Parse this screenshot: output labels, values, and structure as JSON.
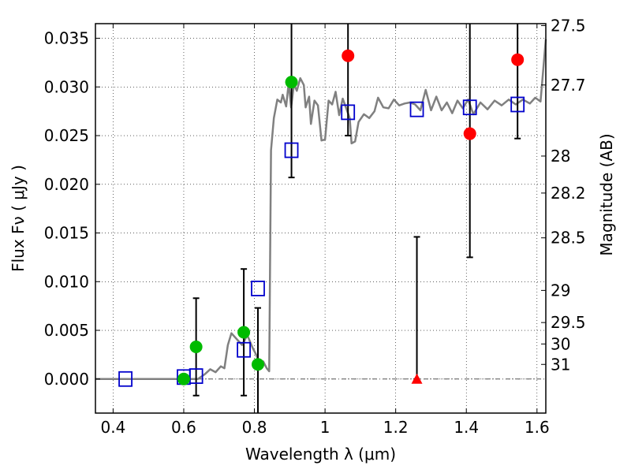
{
  "chart_data": {
    "type": "scatter",
    "xlabel": "Wavelength  λ (μm)",
    "ylabel": "Flux  Fν  ( μJy )",
    "y2label": "Magnitude (AB)",
    "xlim": [
      0.35,
      1.625
    ],
    "ylim": [
      -0.0035,
      0.0365
    ],
    "grid": true,
    "x_ticks": [
      {
        "v": 0.4,
        "label": "0.4"
      },
      {
        "v": 0.6,
        "label": "0.6"
      },
      {
        "v": 0.8,
        "label": "0.8"
      },
      {
        "v": 1.0,
        "label": "1"
      },
      {
        "v": 1.2,
        "label": "1.2"
      },
      {
        "v": 1.4,
        "label": "1.4"
      },
      {
        "v": 1.6,
        "label": "1.6"
      }
    ],
    "y_ticks": [
      {
        "v": 0.0,
        "label": "0.000"
      },
      {
        "v": 0.005,
        "label": "0.005"
      },
      {
        "v": 0.01,
        "label": "0.010"
      },
      {
        "v": 0.015,
        "label": "0.015"
      },
      {
        "v": 0.02,
        "label": "0.020"
      },
      {
        "v": 0.025,
        "label": "0.025"
      },
      {
        "v": 0.03,
        "label": "0.030"
      },
      {
        "v": 0.035,
        "label": "0.035"
      }
    ],
    "mag_ticks": [
      {
        "label": "27.5",
        "flux": 0.0363
      },
      {
        "label": "27.7",
        "flux": 0.0302
      },
      {
        "label": "28",
        "flux": 0.0229
      },
      {
        "label": "28.2",
        "flux": 0.0191
      },
      {
        "label": "28.5",
        "flux": 0.0145
      },
      {
        "label": "29",
        "flux": 0.0091
      },
      {
        "label": "29.5",
        "flux": 0.0058
      },
      {
        "label": "30",
        "flux": 0.0036
      },
      {
        "label": "31",
        "flux": 0.0015
      }
    ],
    "colors": {
      "model": "#808080",
      "model_photometry": "#0000cc",
      "optical": "#00bb00",
      "nir": "#ff0000",
      "errorbar": "#000000",
      "zero_line": "#555555"
    },
    "series": [
      {
        "marker": "line",
        "role": "model",
        "points": [
          [
            0.35,
            0.0
          ],
          [
            0.64,
            0.0
          ],
          [
            0.66,
            0.0005
          ],
          [
            0.675,
            0.001
          ],
          [
            0.69,
            0.0007
          ],
          [
            0.705,
            0.0013
          ],
          [
            0.715,
            0.0011
          ],
          [
            0.725,
            0.0035
          ],
          [
            0.735,
            0.0047
          ],
          [
            0.75,
            0.0041
          ],
          [
            0.765,
            0.0035
          ],
          [
            0.78,
            0.0045
          ],
          [
            0.795,
            0.0032
          ],
          [
            0.805,
            0.0025
          ],
          [
            0.815,
            0.0015
          ],
          [
            0.825,
            0.0018
          ],
          [
            0.835,
            0.0011
          ],
          [
            0.842,
            0.0008
          ],
          [
            0.847,
            0.0235
          ],
          [
            0.855,
            0.0268
          ],
          [
            0.865,
            0.0287
          ],
          [
            0.875,
            0.0284
          ],
          [
            0.88,
            0.0292
          ],
          [
            0.89,
            0.028
          ],
          [
            0.897,
            0.0304
          ],
          [
            0.904,
            0.0279
          ],
          [
            0.912,
            0.0303
          ],
          [
            0.92,
            0.0296
          ],
          [
            0.93,
            0.0309
          ],
          [
            0.94,
            0.0302
          ],
          [
            0.945,
            0.0279
          ],
          [
            0.955,
            0.029
          ],
          [
            0.96,
            0.0262
          ],
          [
            0.97,
            0.0286
          ],
          [
            0.98,
            0.0281
          ],
          [
            0.99,
            0.0245
          ],
          [
            1.0,
            0.0246
          ],
          [
            1.01,
            0.0286
          ],
          [
            1.02,
            0.0282
          ],
          [
            1.03,
            0.0295
          ],
          [
            1.04,
            0.0271
          ],
          [
            1.05,
            0.0288
          ],
          [
            1.06,
            0.0278
          ],
          [
            1.07,
            0.0268
          ],
          [
            1.075,
            0.0242
          ],
          [
            1.085,
            0.0244
          ],
          [
            1.095,
            0.0264
          ],
          [
            1.11,
            0.0272
          ],
          [
            1.125,
            0.0268
          ],
          [
            1.14,
            0.0275
          ],
          [
            1.15,
            0.0289
          ],
          [
            1.165,
            0.0279
          ],
          [
            1.18,
            0.0278
          ],
          [
            1.195,
            0.0287
          ],
          [
            1.21,
            0.0281
          ],
          [
            1.225,
            0.0283
          ],
          [
            1.24,
            0.0284
          ],
          [
            1.255,
            0.0282
          ],
          [
            1.27,
            0.0276
          ],
          [
            1.285,
            0.0297
          ],
          [
            1.3,
            0.0276
          ],
          [
            1.315,
            0.029
          ],
          [
            1.33,
            0.0276
          ],
          [
            1.345,
            0.0284
          ],
          [
            1.36,
            0.0273
          ],
          [
            1.375,
            0.0286
          ],
          [
            1.39,
            0.0278
          ],
          [
            1.405,
            0.0287
          ],
          [
            1.42,
            0.0272
          ],
          [
            1.44,
            0.0284
          ],
          [
            1.46,
            0.0277
          ],
          [
            1.48,
            0.0286
          ],
          [
            1.5,
            0.0281
          ],
          [
            1.52,
            0.0287
          ],
          [
            1.54,
            0.0282
          ],
          [
            1.56,
            0.0287
          ],
          [
            1.58,
            0.0283
          ],
          [
            1.595,
            0.0289
          ],
          [
            1.61,
            0.0285
          ],
          [
            1.625,
            0.0349
          ]
        ]
      },
      {
        "marker": "square",
        "role": "model_photometry",
        "points": [
          [
            0.435,
            0.0
          ],
          [
            0.6,
            0.0002
          ],
          [
            0.635,
            0.0003
          ],
          [
            0.77,
            0.003
          ],
          [
            0.81,
            0.0093
          ],
          [
            0.905,
            0.0235
          ],
          [
            1.065,
            0.0274
          ],
          [
            1.26,
            0.0277
          ],
          [
            1.41,
            0.0279
          ],
          [
            1.545,
            0.0282
          ]
        ]
      },
      {
        "marker": "circle",
        "role": "optical",
        "points": [
          [
            0.6,
            0.0
          ],
          [
            0.635,
            0.0033
          ],
          [
            0.77,
            0.0048
          ],
          [
            0.81,
            0.0015
          ],
          [
            0.905,
            0.0305
          ]
        ]
      },
      {
        "marker": "circle",
        "role": "nir",
        "points": [
          [
            1.065,
            0.0332
          ],
          [
            1.41,
            0.0252
          ],
          [
            1.545,
            0.0328
          ]
        ]
      },
      {
        "marker": "triangle",
        "role": "nir_upper_limit",
        "points": [
          [
            1.26,
            0.0
          ]
        ]
      }
    ],
    "errorbars": [
      {
        "x": 0.635,
        "low": -0.0017,
        "high": 0.0083
      },
      {
        "x": 0.77,
        "low": -0.0017,
        "high": 0.0113
      },
      {
        "x": 0.81,
        "low": -0.0045,
        "high": 0.0073
      },
      {
        "x": 0.905,
        "low": 0.0207,
        "high": 0.0365
      },
      {
        "x": 1.065,
        "low": 0.025,
        "high": 0.0365
      },
      {
        "x": 1.26,
        "low": 0.0,
        "high": 0.0146
      },
      {
        "x": 1.41,
        "low": 0.0125,
        "high": 0.0365
      },
      {
        "x": 1.545,
        "low": 0.0247,
        "high": 0.0365
      }
    ]
  }
}
